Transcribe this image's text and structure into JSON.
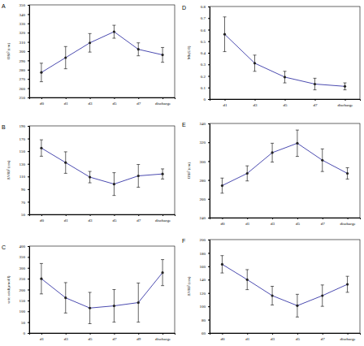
{
  "chart_data": [
    {
      "type": "line",
      "title": "A",
      "y_label": "OSI² (cm)",
      "categories": [
        "d0",
        "d1",
        "d3",
        "d5",
        "d7",
        "discharge"
      ],
      "values": [
        277,
        293,
        309,
        321,
        302,
        296
      ],
      "errors": [
        10,
        12,
        10,
        7,
        7,
        8
      ],
      "color": "#4b4bb0",
      "marker": "circle",
      "ylim": [
        250,
        350
      ],
      "yticks": [
        250,
        260,
        270,
        280,
        290,
        300,
        310,
        320,
        330,
        340,
        350
      ]
    },
    {
      "type": "line",
      "title": "B",
      "y_label": "ΔVRI² (cm)",
      "categories": [
        "d0",
        "d1",
        "d3",
        "d5",
        "d7",
        "discharge"
      ],
      "values": [
        155,
        132,
        109,
        98,
        111,
        114
      ],
      "errors": [
        13,
        17,
        9,
        18,
        18,
        8
      ],
      "color": "#4b4bb0",
      "marker": "circle",
      "ylim": [
        50,
        190
      ],
      "yticks": [
        50,
        70,
        90,
        110,
        130,
        150,
        170,
        190
      ]
    },
    {
      "type": "line",
      "title": "C",
      "y_label": "uric acid(μmol/l)",
      "categories": [
        "d1",
        "d3",
        "d5",
        "d7",
        "d9",
        "discharge"
      ],
      "values": [
        250,
        162,
        115,
        125,
        140,
        278
      ],
      "errors": [
        70,
        70,
        72,
        75,
        90,
        60
      ],
      "color": "#4b4bb0",
      "marker": "circle",
      "ylim": [
        0,
        400
      ],
      "yticks": [
        0,
        50,
        100,
        150,
        200,
        250,
        300,
        350,
        400
      ]
    },
    {
      "type": "line",
      "title": "D",
      "y_label": "Mb(U/l)",
      "categories": [
        "d1",
        "d3",
        "d5",
        "d7",
        "discharge"
      ],
      "values": [
        0.56,
        0.31,
        0.19,
        0.13,
        0.11
      ],
      "errors": [
        0.15,
        0.07,
        0.05,
        0.05,
        0.03
      ],
      "color": "#4b4bb0",
      "marker": "circle",
      "ylim": [
        0,
        0.8
      ],
      "yticks": [
        0,
        0.1,
        0.2,
        0.3,
        0.4,
        0.5,
        0.6,
        0.7,
        0.8
      ]
    },
    {
      "type": "line",
      "title": "E",
      "y_label": "OSI² (cm)",
      "categories": [
        "d0",
        "d1",
        "d3",
        "d5",
        "d7",
        "discharge"
      ],
      "values": [
        274,
        287,
        309,
        319,
        301,
        287
      ],
      "errors": [
        8,
        8,
        10,
        14,
        12,
        6
      ],
      "color": "#4b4bb0",
      "marker": "circle",
      "ylim": [
        240,
        340
      ],
      "yticks": [
        240,
        260,
        280,
        300,
        320,
        340
      ]
    },
    {
      "type": "line",
      "title": "F",
      "y_label": "ΔVRI² (cm)",
      "categories": [
        "d0",
        "d1",
        "d3",
        "d5",
        "d7",
        "discharge"
      ],
      "values": [
        163,
        140,
        116,
        101,
        116,
        133
      ],
      "errors": [
        13,
        15,
        14,
        17,
        16,
        12
      ],
      "color": "#4b4bb0",
      "marker": "circle",
      "ylim": [
        60,
        200
      ],
      "yticks": [
        60,
        80,
        100,
        120,
        140,
        160,
        180,
        200
      ]
    }
  ]
}
